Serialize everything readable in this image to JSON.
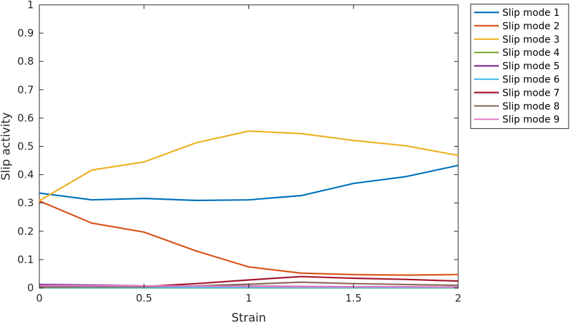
{
  "chart_data": {
    "type": "line",
    "title": "",
    "xlabel": "Strain",
    "ylabel": "Slip activity",
    "xlim": [
      0,
      2
    ],
    "ylim": [
      0,
      1
    ],
    "xticks": [
      "0",
      "0.5",
      "1",
      "1.5",
      "2"
    ],
    "yticks": [
      "0",
      "0.1",
      "0.2",
      "0.3",
      "0.4",
      "0.5",
      "0.6",
      "0.7",
      "0.8",
      "0.9",
      "1"
    ],
    "grid": false,
    "legend_position": "outside-top-right",
    "x": [
      0,
      0.25,
      0.5,
      0.75,
      1.0,
      1.25,
      1.5,
      1.75,
      2.0
    ],
    "series": [
      {
        "name": "Slip mode 1",
        "color": "#0072BD",
        "values": [
          0.335,
          0.311,
          0.316,
          0.309,
          0.311,
          0.326,
          0.369,
          0.393,
          0.433
        ]
      },
      {
        "name": "Slip mode 2",
        "color": "#D95319",
        "values": [
          0.307,
          0.229,
          0.197,
          0.13,
          0.074,
          0.052,
          0.047,
          0.045,
          0.047
        ]
      },
      {
        "name": "Slip mode 3",
        "color": "#EDB120",
        "values": [
          0.308,
          0.416,
          0.445,
          0.513,
          0.554,
          0.545,
          0.521,
          0.502,
          0.468
        ]
      },
      {
        "name": "Slip mode 4",
        "color": "#77AC30",
        "values": [
          0.0,
          0.0,
          0.0,
          0.0,
          0.0,
          0.0,
          0.0,
          0.0,
          0.0
        ]
      },
      {
        "name": "Slip mode 5",
        "color": "#7E2F8E",
        "values": [
          0.012,
          0.01,
          0.007,
          0.006,
          0.006,
          0.005,
          0.004,
          0.004,
          0.003
        ]
      },
      {
        "name": "Slip mode 6",
        "color": "#4DBEEE",
        "values": [
          0.001,
          0.001,
          0.001,
          0.001,
          0.001,
          0.001,
          0.001,
          0.001,
          0.001
        ]
      },
      {
        "name": "Slip mode 7",
        "color": "#A2142F",
        "values": [
          0.005,
          0.004,
          0.005,
          0.015,
          0.028,
          0.04,
          0.034,
          0.03,
          0.024
        ]
      },
      {
        "name": "Slip mode 8",
        "color": "#8C6A5A",
        "values": [
          0.003,
          0.004,
          0.004,
          0.007,
          0.013,
          0.02,
          0.015,
          0.012,
          0.009
        ]
      },
      {
        "name": "Slip mode 9",
        "color": "#E07FC8",
        "values": [
          0.008,
          0.008,
          0.007,
          0.006,
          0.005,
          0.004,
          0.004,
          0.004,
          0.003
        ]
      }
    ]
  }
}
